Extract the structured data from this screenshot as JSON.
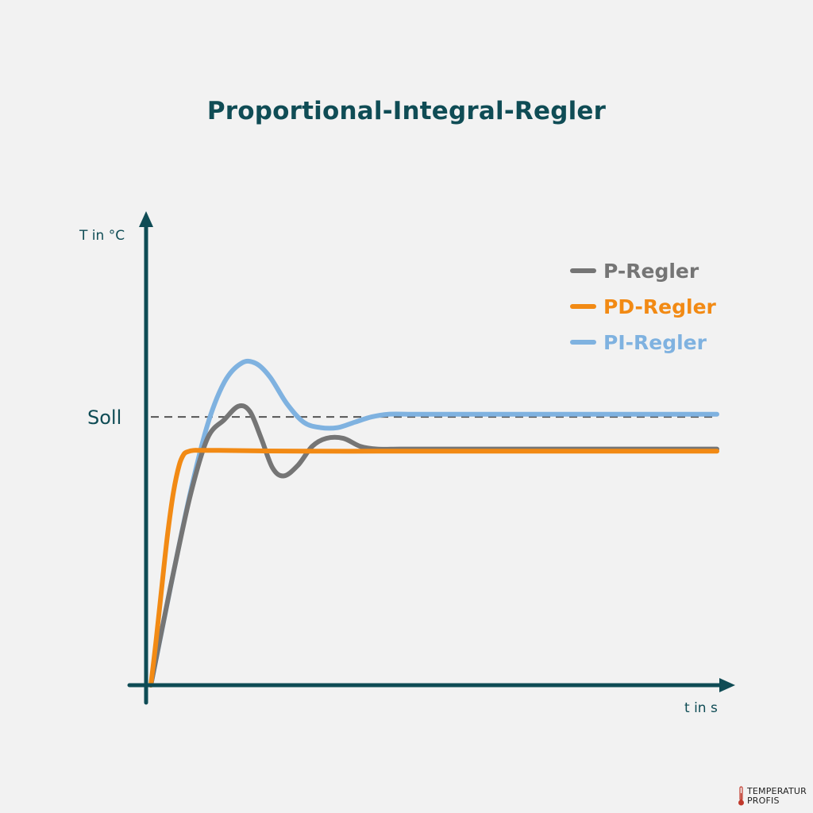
{
  "chart_data": {
    "type": "line",
    "title": "Proportional-Integral-Regler",
    "ylabel": "T in °C",
    "xlabel": "t in s",
    "reference": {
      "label": "Soll",
      "y": 1.0
    },
    "xlim": [
      0,
      10
    ],
    "ylim": [
      0,
      1.45
    ],
    "legend_position": "top-right",
    "series": [
      {
        "name": "P-Regler",
        "color": "#757575",
        "x": [
          0,
          0.15,
          0.4,
          0.7,
          1.0,
          1.3,
          1.55,
          1.75,
          1.95,
          2.15,
          2.35,
          2.6,
          2.85,
          3.1,
          3.4,
          3.7,
          4.0,
          4.4,
          5.0,
          6.0,
          7.0,
          8.0,
          9.0,
          10.0
        ],
        "y": [
          0,
          0.16,
          0.42,
          0.71,
          0.92,
          0.99,
          1.04,
          1.02,
          0.92,
          0.81,
          0.78,
          0.82,
          0.89,
          0.92,
          0.92,
          0.89,
          0.88,
          0.88,
          0.88,
          0.88,
          0.88,
          0.88,
          0.88,
          0.88
        ]
      },
      {
        "name": "PD-Regler",
        "color": "#f28a14",
        "x": [
          0,
          0.1,
          0.2,
          0.3,
          0.4,
          0.5,
          0.58,
          0.65,
          0.75,
          0.9,
          1.2,
          2.0,
          3.0,
          4.0,
          5.0,
          6.0,
          7.0,
          8.0,
          9.0,
          10.0
        ],
        "y": [
          0,
          0.18,
          0.38,
          0.57,
          0.72,
          0.82,
          0.86,
          0.87,
          0.875,
          0.875,
          0.875,
          0.873,
          0.872,
          0.872,
          0.872,
          0.872,
          0.872,
          0.872,
          0.872,
          0.872
        ]
      },
      {
        "name": "PI-Regler",
        "color": "#7fb2e0",
        "x": [
          0,
          0.2,
          0.4,
          0.7,
          1.0,
          1.3,
          1.6,
          1.85,
          2.1,
          2.4,
          2.7,
          3.0,
          3.3,
          3.6,
          3.9,
          4.2,
          4.6,
          5.0,
          6.0,
          7.0,
          8.0,
          9.0,
          10.0
        ],
        "y": [
          0,
          0.21,
          0.42,
          0.72,
          0.97,
          1.13,
          1.2,
          1.2,
          1.15,
          1.05,
          0.98,
          0.96,
          0.96,
          0.98,
          1.0,
          1.01,
          1.01,
          1.01,
          1.01,
          1.01,
          1.01,
          1.01,
          1.01
        ]
      }
    ]
  },
  "logo": {
    "line1": "TEMPERATUR",
    "line2": "PROFIS"
  },
  "colors": {
    "axis": "#0f4c55",
    "background": "#f2f2f2"
  }
}
